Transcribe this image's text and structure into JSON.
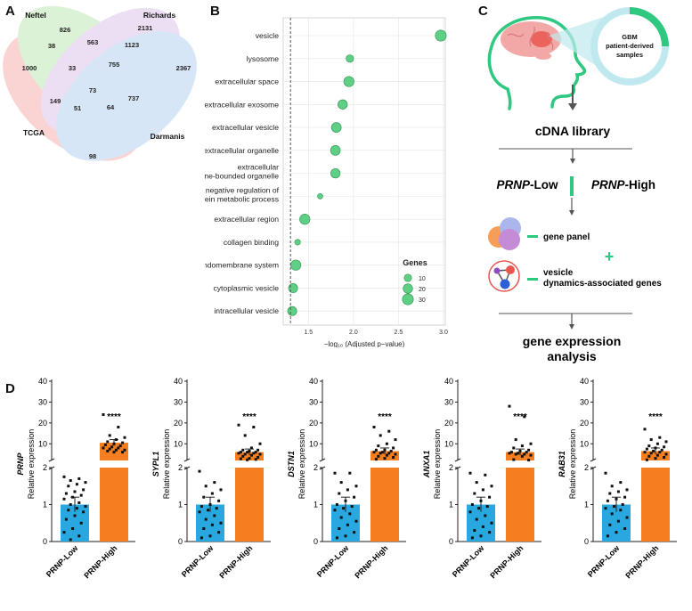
{
  "panel_labels": {
    "a": "A",
    "b": "B",
    "c": "C",
    "d": "D"
  },
  "venn": {
    "sets": [
      "Neftel",
      "Richards",
      "TCGA",
      "Darmanis"
    ],
    "regions": [
      "826",
      "2131",
      "1000",
      "2367",
      "38",
      "563",
      "1123",
      "33",
      "755",
      "73",
      "149",
      "51",
      "64",
      "737",
      "98"
    ]
  },
  "workflow": {
    "sample_line1": "GBM",
    "sample_line2": "patient-derived",
    "sample_line3": "samples",
    "cdna": "cDNA library",
    "low_gene": "PRNP",
    "low_suffix": "-Low",
    "high_gene": "PRNP",
    "high_suffix": "-High",
    "gene_panel": "gene panel",
    "plus": "+",
    "vesicle_line1": "vesicle",
    "vesicle_line2": "dynamics-associated genes",
    "analysis_line1": "gene expression",
    "analysis_line2": "analysis"
  },
  "chart_data": [
    {
      "type": "scatter",
      "panel": "B",
      "terms": [
        "vesicle",
        "lysosome",
        "extracellular space",
        "extracellular exosome",
        "extracellular vesicle",
        "extracellular organelle",
        "extracellular membrane-bounded organelle",
        "negative regulation of glycoprotein metabolic process",
        "extracellular region",
        "collagen binding",
        "endomembrane system",
        "cytoplasmic vesicle",
        "intracellular vesicle"
      ],
      "x": [
        2.97,
        1.96,
        1.95,
        1.88,
        1.81,
        1.8,
        1.8,
        1.63,
        1.46,
        1.38,
        1.36,
        1.33,
        1.32
      ],
      "genes": [
        30,
        10,
        25,
        20,
        22,
        22,
        20,
        3,
        25,
        4,
        25,
        18,
        18
      ],
      "xlabel": "−log₁₀ (Adjusted p−value)",
      "xticks": [
        "1.5",
        "2.0",
        "2.5",
        "3.0"
      ],
      "xlim": [
        1.22,
        3.02
      ],
      "threshold": 1.301,
      "legend_title": "Genes",
      "legend_sizes": [
        "10",
        "20",
        "30"
      ],
      "legend_position": "bottom-right",
      "grid": true,
      "color": "#5fcf85"
    },
    {
      "type": "bar",
      "panel": "D",
      "ylabel": "Relative expression",
      "categories": [
        "PRNP-Low",
        "PRNP-High"
      ],
      "yticks_lower": [
        "0",
        "1",
        "2"
      ],
      "yticks_upper": [
        "10",
        "20",
        "30",
        "40"
      ],
      "significance": "****",
      "colors": {
        "low": "#29a8e0",
        "high": "#f47e20"
      },
      "genes": [
        {
          "name": "PRNP",
          "low_mean": 1.0,
          "high_mean": 10.5,
          "low_points": [
            1.75,
            1.7,
            1.65,
            1.6,
            1.55,
            1.5,
            1.4,
            1.35,
            1.3,
            1.25,
            1.2,
            1.15,
            1.05,
            1.0,
            0.95,
            0.9,
            0.85,
            0.8,
            0.7,
            0.6,
            0.5,
            0.35,
            0.25,
            0.15,
            0.05
          ],
          "high_points": [
            24,
            18,
            14,
            13,
            12,
            11,
            10.5,
            10,
            9.5,
            9,
            8.5,
            8,
            8,
            7.5,
            7,
            7,
            6.5,
            6,
            6
          ]
        },
        {
          "name": "SYPL1",
          "low_mean": 1.0,
          "high_mean": 6.0,
          "low_points": [
            1.9,
            1.6,
            1.5,
            1.4,
            1.3,
            1.2,
            1.1,
            1.0,
            0.95,
            0.9,
            0.85,
            0.8,
            0.7,
            0.6,
            0.5,
            0.45,
            0.35,
            0.25,
            0.15,
            0.1
          ],
          "high_points": [
            19,
            18,
            14,
            10,
            8,
            7,
            7,
            6.5,
            6,
            6,
            6,
            5.5,
            5.5,
            5,
            5,
            4.5,
            4,
            3.5,
            3,
            2.8,
            2.5,
            2.3
          ]
        },
        {
          "name": "DSTN1",
          "low_mean": 1.0,
          "high_mean": 6.5,
          "low_points": [
            1.85,
            1.85,
            1.6,
            1.5,
            1.4,
            1.3,
            1.2,
            1.1,
            1.0,
            0.95,
            0.9,
            0.85,
            0.75,
            0.65,
            0.55,
            0.45,
            0.35,
            0.25,
            0.15,
            0.1
          ],
          "high_points": [
            18,
            16,
            14,
            12,
            10,
            9,
            8,
            7,
            7,
            6.5,
            6,
            6,
            5.5,
            5.5,
            5,
            4.5,
            4,
            3.5,
            3,
            2.6
          ]
        },
        {
          "name": "ANXA1",
          "low_mean": 1.0,
          "high_mean": 6.0,
          "low_points": [
            1.85,
            1.8,
            1.6,
            1.5,
            1.4,
            1.3,
            1.2,
            1.1,
            1.0,
            0.95,
            0.9,
            0.8,
            0.7,
            0.6,
            0.5,
            0.4,
            0.3,
            0.25,
            0.15,
            0.1
          ],
          "high_points": [
            28,
            23,
            12,
            10,
            9,
            8,
            7,
            6.5,
            6,
            6,
            5.5,
            5.5,
            5,
            5,
            4.5,
            4,
            2.4,
            2.2
          ]
        },
        {
          "name": "RAB31",
          "low_mean": 1.0,
          "high_mean": 6.5,
          "low_points": [
            1.85,
            1.6,
            1.5,
            1.4,
            1.35,
            1.3,
            1.2,
            1.15,
            1.1,
            1.0,
            0.95,
            0.9,
            0.85,
            0.75,
            0.65,
            0.55,
            0.45,
            0.35,
            0.25,
            0.15
          ],
          "high_points": [
            17,
            13,
            12,
            11,
            10,
            9,
            8.5,
            8,
            7.5,
            7,
            6.5,
            6,
            6,
            5.5,
            5,
            4.5,
            4,
            3.5,
            3,
            2.3
          ]
        }
      ]
    }
  ]
}
